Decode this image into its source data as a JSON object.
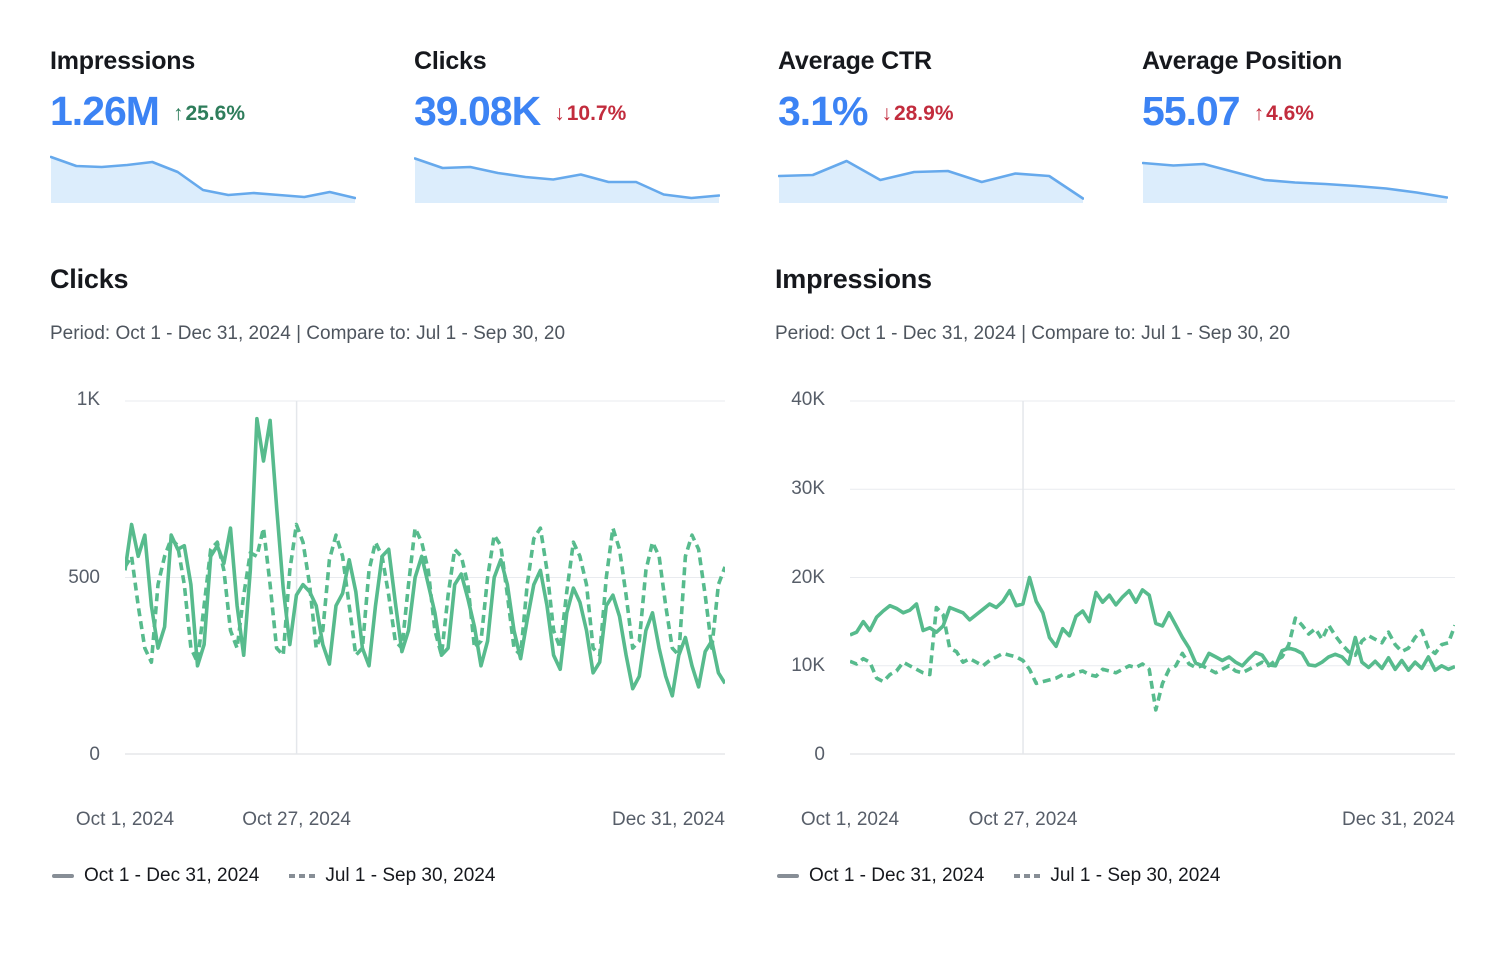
{
  "colors": {
    "value_blue": "#3c83f4",
    "delta_good_green": "#2e7d5b",
    "delta_bad_red": "#c22c3d",
    "spark_line": "#66a9ec",
    "spark_fill": "#dcedfc",
    "series_green": "#57bb8d",
    "legend_marker_gray": "#878e96",
    "gridline": "#e9ebef",
    "axis_label_gray": "#575e69"
  },
  "cards": [
    {
      "title": "Impressions",
      "value": "1.26M",
      "arrow_glyph": "↑",
      "delta": "25.6%",
      "tone": "good",
      "spark": [
        88,
        70,
        68,
        72,
        78,
        58,
        22,
        12,
        16,
        12,
        8,
        18,
        6
      ]
    },
    {
      "title": "Clicks",
      "value": "39.08K",
      "arrow_glyph": "↓",
      "delta": "10.7%",
      "tone": "bad",
      "spark": [
        85,
        66,
        68,
        56,
        48,
        43,
        53,
        38,
        38,
        13,
        6,
        11
      ]
    },
    {
      "title": "Average CTR",
      "value": "3.1%",
      "arrow_glyph": "↓",
      "delta": "28.9%",
      "tone": "bad",
      "spark": [
        50,
        52,
        80,
        42,
        58,
        60,
        38,
        55,
        50,
        5
      ]
    },
    {
      "title": "Average Position",
      "value": "55.07",
      "arrow_glyph": "↑",
      "delta": "4.6%",
      "tone": "bad",
      "spark": [
        76,
        71,
        74,
        58,
        42,
        37,
        34,
        30,
        25,
        17,
        7
      ]
    }
  ],
  "chart_data": [
    {
      "type": "line",
      "title": "Clicks",
      "period_display": "Period: Oct 1 - Dec 31, 2024 | Compare to: Jul 1 - Sep 30, 20",
      "period": "Oct 1 - Dec 31, 2024",
      "compare_to": "Jul 1 - Sep 30, 2024",
      "xticks": [
        "Oct 1, 2024",
        "Oct 27, 2024",
        "Dec 31, 2024"
      ],
      "xtick_positions": [
        0,
        0.286,
        1
      ],
      "ylim": [
        0,
        1000
      ],
      "yticks": [
        {
          "v": 0,
          "label": "0"
        },
        {
          "v": 500,
          "label": "500"
        },
        {
          "v": 1000,
          "label": "1K"
        }
      ],
      "grid": true,
      "legend_position": "bottom",
      "legend": [
        "Oct 1 - Dec 31, 2024",
        "Jul 1 - Sep 30, 2024"
      ],
      "series": [
        {
          "name": "Oct 1 - Dec 31, 2024",
          "style": "solid",
          "values": [
            520,
            650,
            560,
            620,
            420,
            300,
            360,
            620,
            580,
            590,
            480,
            250,
            310,
            560,
            590,
            540,
            640,
            420,
            280,
            520,
            950,
            830,
            945,
            700,
            470,
            310,
            450,
            480,
            460,
            420,
            310,
            255,
            420,
            455,
            550,
            460,
            300,
            250,
            420,
            560,
            580,
            430,
            290,
            350,
            500,
            560,
            480,
            400,
            280,
            300,
            480,
            510,
            440,
            360,
            250,
            320,
            500,
            550,
            480,
            350,
            270,
            380,
            480,
            520,
            420,
            280,
            240,
            400,
            470,
            430,
            350,
            230,
            260,
            420,
            450,
            390,
            280,
            185,
            220,
            350,
            400,
            300,
            220,
            165,
            280,
            330,
            250,
            190,
            290,
            320,
            230,
            200
          ]
        },
        {
          "name": "Jul 1 - Sep 30, 2024",
          "style": "dashed",
          "values": [
            530,
            560,
            420,
            300,
            260,
            480,
            560,
            610,
            590,
            480,
            300,
            260,
            420,
            580,
            600,
            520,
            350,
            300,
            450,
            570,
            560,
            640,
            480,
            300,
            280,
            520,
            650,
            600,
            480,
            300,
            350,
            550,
            620,
            560,
            420,
            280,
            300,
            520,
            600,
            560,
            450,
            320,
            300,
            480,
            640,
            600,
            520,
            350,
            280,
            450,
            580,
            560,
            480,
            300,
            320,
            500,
            620,
            590,
            450,
            300,
            280,
            480,
            610,
            640,
            520,
            350,
            300,
            460,
            600,
            560,
            480,
            300,
            280,
            500,
            640,
            580,
            450,
            300,
            320,
            520,
            600,
            560,
            420,
            300,
            280,
            560,
            620,
            580,
            450,
            300,
            480,
            530
          ]
        }
      ]
    },
    {
      "type": "line",
      "title": "Impressions",
      "period_display": "Period: Oct 1 - Dec 31, 2024 | Compare to: Jul 1 - Sep 30, 20",
      "period": "Oct 1 - Dec 31, 2024",
      "compare_to": "Jul 1 - Sep 30, 2024",
      "xticks": [
        "Oct 1, 2024",
        "Oct 27, 2024",
        "Dec 31, 2024"
      ],
      "xtick_positions": [
        0,
        0.286,
        1
      ],
      "ylim": [
        0,
        40000
      ],
      "yticks": [
        {
          "v": 0,
          "label": "0"
        },
        {
          "v": 10000,
          "label": "10K"
        },
        {
          "v": 20000,
          "label": "20K"
        },
        {
          "v": 30000,
          "label": "30K"
        },
        {
          "v": 40000,
          "label": "40K"
        }
      ],
      "grid": true,
      "legend_position": "bottom",
      "legend": [
        "Oct 1 - Dec 31, 2024",
        "Jul 1 - Sep 30, 2024"
      ],
      "series": [
        {
          "name": "Oct 1 - Dec 31, 2024",
          "style": "solid",
          "values": [
            13500,
            13800,
            15000,
            14000,
            15500,
            16200,
            16800,
            16500,
            16000,
            16300,
            17000,
            14000,
            14300,
            13800,
            14500,
            16600,
            16300,
            16000,
            15200,
            15800,
            16400,
            17000,
            16600,
            17300,
            18500,
            16800,
            17000,
            20000,
            17300,
            16000,
            13200,
            12200,
            14200,
            13400,
            15600,
            16200,
            15000,
            18300,
            17200,
            18000,
            16900,
            17800,
            18500,
            17200,
            18600,
            18000,
            14800,
            14500,
            16000,
            14600,
            13200,
            12000,
            10300,
            10000,
            11400,
            11000,
            10600,
            11000,
            10400,
            10000,
            10800,
            11500,
            11200,
            10100,
            10000,
            11700,
            12000,
            11800,
            11400,
            10100,
            10000,
            10400,
            11000,
            11300,
            11000,
            10200,
            13200,
            10400,
            9800,
            10500,
            9700,
            10900,
            9600,
            10600,
            9500,
            10400,
            9700,
            11000,
            9500,
            10000,
            9600,
            9900
          ]
        },
        {
          "name": "Jul 1 - Sep 30, 2024",
          "style": "dashed",
          "values": [
            10500,
            10200,
            10800,
            10400,
            8600,
            8200,
            9000,
            9400,
            10400,
            10000,
            9600,
            9200,
            9000,
            16600,
            15800,
            12000,
            11600,
            10400,
            10800,
            10400,
            10000,
            10600,
            11000,
            11400,
            11200,
            11000,
            10600,
            9600,
            8000,
            8200,
            8400,
            8600,
            9000,
            8800,
            9200,
            9400,
            9000,
            8800,
            9600,
            9400,
            9200,
            9600,
            10000,
            9800,
            10200,
            9600,
            5000,
            8000,
            9600,
            10000,
            11400,
            10200,
            9800,
            10000,
            9600,
            9200,
            9600,
            10000,
            9400,
            9200,
            9600,
            10000,
            10400,
            10000,
            10600,
            11000,
            12400,
            15400,
            14600,
            13600,
            14200,
            13000,
            14600,
            13400,
            12400,
            11600,
            11200,
            12800,
            13400,
            13000,
            12600,
            13800,
            12400,
            11600,
            12000,
            13200,
            14000,
            12000,
            11400,
            12400,
            12600,
            14600
          ]
        }
      ]
    }
  ]
}
